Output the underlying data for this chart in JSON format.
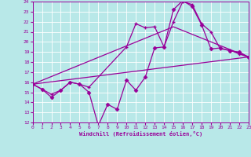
{
  "xlabel": "Windchill (Refroidissement éolien,°C)",
  "bg_color": "#b8e8e8",
  "grid_color": "#ffffff",
  "line_color": "#990099",
  "xmin": 0,
  "xmax": 23,
  "ymin": 12,
  "ymax": 24,
  "series": [
    {
      "x": [
        0,
        1,
        2,
        3,
        4,
        5,
        6,
        7,
        8,
        9,
        10,
        11,
        12,
        13,
        14,
        15,
        16,
        17,
        18,
        19,
        20,
        21,
        22,
        23
      ],
      "y": [
        15.8,
        15.3,
        14.5,
        15.2,
        16.0,
        15.8,
        15.0,
        11.7,
        13.8,
        13.3,
        16.2,
        15.2,
        16.5,
        19.4,
        19.5,
        23.2,
        24.1,
        23.5,
        21.7,
        19.3,
        19.4,
        19.1,
        19.0,
        18.5
      ],
      "marker": "D",
      "markersize": 2.5,
      "linewidth": 0.9
    },
    {
      "x": [
        0,
        1,
        2,
        3,
        4,
        5,
        6,
        10,
        11,
        12,
        13,
        14,
        15,
        16,
        17,
        18,
        19,
        20,
        21,
        22,
        23
      ],
      "y": [
        15.8,
        15.3,
        14.8,
        15.2,
        16.0,
        15.8,
        15.5,
        19.5,
        21.8,
        21.4,
        21.5,
        19.5,
        22.0,
        24.0,
        23.7,
        21.8,
        21.0,
        19.3,
        19.2,
        18.8,
        18.5
      ],
      "marker": "P",
      "markersize": 3,
      "linewidth": 0.9
    },
    {
      "x": [
        0,
        23
      ],
      "y": [
        15.8,
        18.5
      ],
      "marker": null,
      "markersize": 0,
      "linewidth": 0.9
    },
    {
      "x": [
        0,
        15,
        23
      ],
      "y": [
        15.8,
        21.5,
        18.5
      ],
      "marker": null,
      "markersize": 0,
      "linewidth": 0.9
    }
  ]
}
